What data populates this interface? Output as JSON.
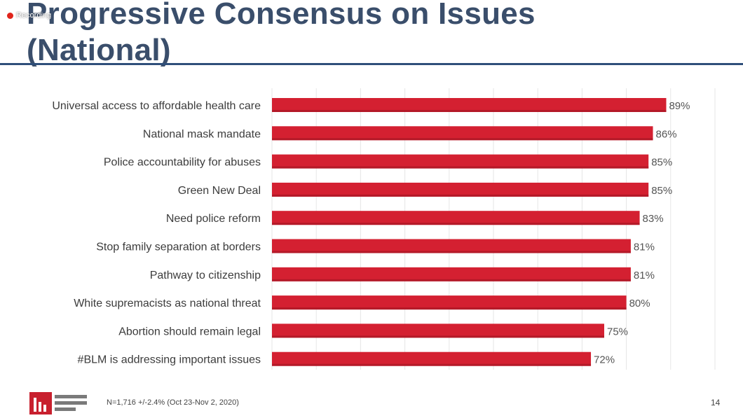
{
  "recording_label": "Recording",
  "slide": {
    "title_line1": "Progressive Consensus on Issues",
    "title_line2": "(National)",
    "footnote": "N=1,716 +/-2.4% (Oct 23-Nov 2, 2020)",
    "page_number": "14"
  },
  "colors": {
    "bar": "#d42031",
    "title": "#3a4e6b",
    "rule": "#2f4f7a"
  },
  "chart_data": {
    "type": "bar",
    "orientation": "horizontal",
    "categories": [
      "Universal access to affordable health care",
      "National mask mandate",
      "Police accountability for abuses",
      "Green New Deal",
      "Need police reform",
      "Stop family separation at borders",
      "Pathway to citizenship",
      "White supremacists as national threat",
      "Abortion should remain legal",
      "#BLM is addressing important issues"
    ],
    "values": [
      89,
      86,
      85,
      85,
      83,
      81,
      81,
      80,
      75,
      72
    ],
    "data_labels": [
      "89%",
      "86%",
      "85%",
      "85%",
      "83%",
      "81%",
      "81%",
      "80%",
      "75%",
      "72%"
    ],
    "xlim": [
      0,
      100
    ],
    "grid": true,
    "legend": "none"
  }
}
